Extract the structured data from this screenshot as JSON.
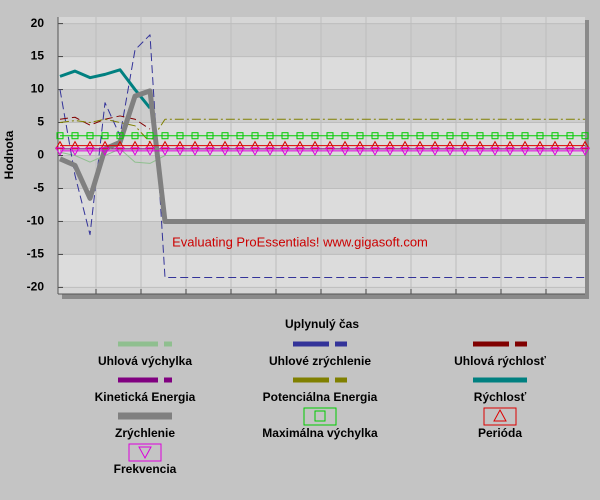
{
  "chart_data": {
    "type": "line",
    "ylabel": "Hodnota",
    "xlabel": "Uplynulý čas",
    "annotation": "Evaluating ProEssentials! www.gigasoft.com",
    "x": [
      0,
      1,
      2,
      3,
      4,
      5,
      6,
      7,
      8,
      9,
      10,
      11,
      12,
      13,
      14,
      15,
      16,
      17,
      18,
      19,
      20,
      21,
      22,
      23,
      24,
      25,
      26,
      27,
      28,
      29,
      30,
      31,
      32,
      33,
      34,
      35
    ],
    "xlim": [
      0,
      35
    ],
    "xticks": [
      2.4,
      5.4,
      8.4,
      11.4,
      14.4,
      17.4,
      20.4,
      23.4,
      26.4,
      29.4,
      32.4
    ],
    "ylim": [
      -21,
      21
    ],
    "yticks": [
      20,
      15,
      10,
      5,
      0,
      -5,
      -10,
      -15,
      -20
    ],
    "grid": true,
    "series": [
      {
        "name": "Uhlová výchylka",
        "color": "#8fbf8f",
        "width": 1,
        "dash": "solid",
        "values": [
          0.5,
          0,
          -1,
          0,
          1,
          -1,
          -1.2,
          0,
          0,
          0,
          0,
          0,
          0,
          0,
          0,
          0,
          0,
          0,
          0,
          0,
          0,
          0,
          0,
          0,
          0,
          0,
          0,
          0,
          0,
          0,
          0,
          0,
          0,
          0,
          0,
          0
        ]
      },
      {
        "name": "Uhlové zrýchlenie",
        "color": "#333399",
        "width": 1,
        "dash": "dash",
        "values": [
          10,
          -3,
          -12,
          8,
          3,
          16,
          18.3,
          -18.5,
          -18.5,
          -18.5,
          -18.5,
          -18.5,
          -18.5,
          -18.5,
          -18.5,
          -18.5,
          -18.5,
          -18.5,
          -18.5,
          -18.5,
          -18.5,
          -18.5,
          -18.5,
          -18.5,
          -18.5,
          -18.5,
          -18.5,
          -18.5,
          -18.5,
          -18.5,
          -18.5,
          -18.5,
          -18.5,
          -18.5,
          -18.5,
          -18.5
        ]
      },
      {
        "name": "Uhlová rýchlosť",
        "color": "#800000",
        "width": 1,
        "dash": "dash",
        "values": [
          5.5,
          5.8,
          4.6,
          5.5,
          6,
          5.5,
          4,
          null,
          null,
          null,
          null,
          null,
          null,
          null,
          null,
          null,
          null,
          null,
          null,
          null,
          null,
          null,
          null,
          null,
          null,
          null,
          null,
          null,
          null,
          null,
          null,
          null,
          null,
          null,
          null,
          null
        ]
      },
      {
        "name": "Kinetická Energia",
        "color": "#800080",
        "width": 1,
        "dash": "solid",
        "values": [
          1,
          1,
          1,
          1,
          1,
          1,
          1,
          1,
          1,
          1,
          1,
          1,
          1,
          1,
          1,
          1,
          1,
          1,
          1,
          1,
          1,
          1,
          1,
          1,
          1,
          1,
          1,
          1,
          1,
          1,
          1,
          1,
          1,
          1,
          1,
          1
        ]
      },
      {
        "name": "Potenciálna Energia",
        "color": "#808000",
        "width": 1,
        "dash": "dashdot",
        "values": [
          5,
          5.3,
          5,
          5.5,
          5,
          4.5,
          2,
          5.5,
          5.5,
          5.5,
          5.5,
          5.5,
          5.5,
          5.5,
          5.5,
          5.5,
          5.5,
          5.5,
          5.5,
          5.5,
          5.5,
          5.5,
          5.5,
          5.5,
          5.5,
          5.5,
          5.5,
          5.5,
          5.5,
          5.5,
          5.5,
          5.5,
          5.5,
          5.5,
          5.5,
          5.5
        ]
      },
      {
        "name": "Rýchlosť",
        "color": "#008080",
        "width": 3,
        "dash": "solid",
        "values": [
          12,
          12.8,
          11.8,
          12.3,
          13,
          10,
          7.2,
          null,
          null,
          null,
          null,
          null,
          null,
          null,
          null,
          null,
          null,
          null,
          null,
          null,
          null,
          null,
          null,
          null,
          null,
          null,
          null,
          null,
          null,
          null,
          null,
          null,
          null,
          null,
          null,
          null
        ]
      },
      {
        "name": "Zrýchlenie",
        "color": "#808080",
        "width": 5,
        "dash": "solid",
        "values": [
          -0.5,
          -1.5,
          -6.5,
          1,
          2,
          9,
          9.8,
          -10,
          -10,
          -10,
          -10,
          -10,
          -10,
          -10,
          -10,
          -10,
          -10,
          -10,
          -10,
          -10,
          -10,
          -10,
          -10,
          -10,
          -10,
          -10,
          -10,
          -10,
          -10,
          -10,
          -10,
          -10,
          -10,
          -10,
          -10,
          -10
        ]
      },
      {
        "name": "Maximálna výchylka",
        "color": "#00cc00",
        "width": 1,
        "dash": "solid",
        "marker": "square",
        "values": [
          3,
          3,
          3,
          3,
          3,
          3,
          3,
          3,
          3,
          3,
          3,
          3,
          3,
          3,
          3,
          3,
          3,
          3,
          3,
          3,
          3,
          3,
          3,
          3,
          3,
          3,
          3,
          3,
          3,
          3,
          3,
          3,
          3,
          3,
          3,
          3
        ]
      },
      {
        "name": "Perióda",
        "color": "#dd0000",
        "width": 1,
        "dash": "solid",
        "marker": "triangle",
        "values": [
          1.5,
          1.5,
          1.5,
          1.5,
          1.5,
          1.5,
          1.5,
          1.5,
          1.5,
          1.5,
          1.5,
          1.5,
          1.5,
          1.5,
          1.5,
          1.5,
          1.5,
          1.5,
          1.5,
          1.5,
          1.5,
          1.5,
          1.5,
          1.5,
          1.5,
          1.5,
          1.5,
          1.5,
          1.5,
          1.5,
          1.5,
          1.5,
          1.5,
          1.5,
          1.5,
          1.5
        ]
      },
      {
        "name": "Frekvencia",
        "color": "#dd00dd",
        "width": 1,
        "dash": "solid",
        "marker": "triangle-down",
        "values": [
          0.7,
          0.7,
          0.7,
          0.7,
          0.7,
          0.7,
          0.7,
          0.7,
          0.7,
          0.7,
          0.7,
          0.7,
          0.7,
          0.7,
          0.7,
          0.7,
          0.7,
          0.7,
          0.7,
          0.7,
          0.7,
          0.7,
          0.7,
          0.7,
          0.7,
          0.7,
          0.7,
          0.7,
          0.7,
          0.7,
          0.7,
          0.7,
          0.7,
          0.7,
          0.7,
          0.7
        ]
      }
    ]
  }
}
